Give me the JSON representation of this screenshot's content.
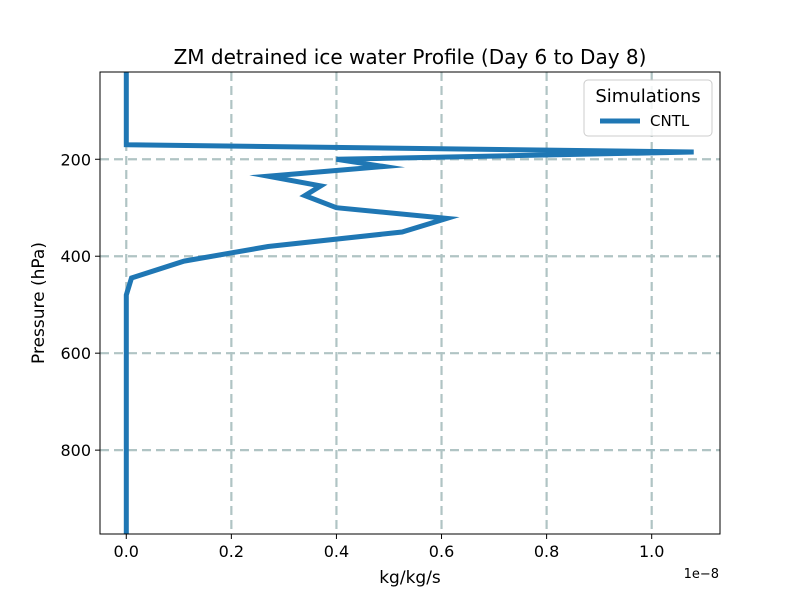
{
  "chart_data": {
    "type": "line",
    "title": "ZM detrained ice water Profile (Day 6 to Day 8)",
    "xlabel": "kg/kg/s",
    "ylabel": "Pressure (hPa)",
    "x_offset_label": "1e−8",
    "xlim": [
      -0.05,
      1.13
    ],
    "ylim": [
      973,
      20
    ],
    "y_inverted": true,
    "x_ticks": [
      0.0,
      0.2,
      0.4,
      0.6,
      0.8,
      1.0
    ],
    "x_tick_labels": [
      "0.0",
      "0.2",
      "0.4",
      "0.6",
      "0.8",
      "1.0"
    ],
    "y_ticks": [
      200,
      400,
      600,
      800
    ],
    "y_tick_labels": [
      "200",
      "400",
      "600",
      "800"
    ],
    "grid": true,
    "legend": {
      "title": "Simulations",
      "placement": "top-right"
    },
    "series": [
      {
        "name": "CNTL",
        "color": "#1f77b4",
        "x": [
          0.0,
          0.0,
          1.08,
          0.4,
          0.49,
          0.27,
          0.37,
          0.34,
          0.4,
          0.61,
          0.525,
          0.27,
          0.11,
          0.01,
          0.0,
          0.0
        ],
        "y": [
          20,
          170,
          185,
          200,
          215,
          235,
          255,
          275,
          300,
          322,
          350,
          380,
          410,
          445,
          480,
          973
        ]
      }
    ]
  }
}
